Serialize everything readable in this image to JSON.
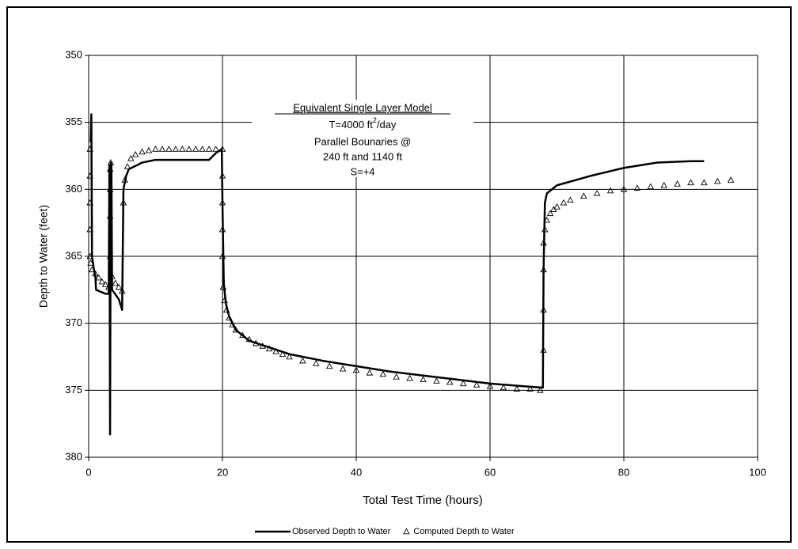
{
  "chart_data": {
    "type": "line",
    "annotation": {
      "title": "Equivalent Single Layer Model",
      "t_text": "T=4000 ft",
      "t_sup": "2",
      "t_unit": "/day",
      "line2": "Parallel Bounaries @",
      "line3": "240 ft and 1140 ft",
      "line4": "S=+4"
    },
    "x_label": "Total Test Time (hours)",
    "y_label": "Depth to Water (feet)",
    "xlim": [
      0,
      100
    ],
    "xticks": [
      0,
      20,
      40,
      60,
      80,
      100
    ],
    "ylim": [
      350,
      380
    ],
    "yticks": [
      350,
      355,
      360,
      365,
      370,
      375,
      380
    ],
    "y_inverted": true,
    "grid": true,
    "legend": "bottom",
    "series": [
      {
        "name": "Observed Depth to Water",
        "color": "#000000",
        "style": "line",
        "x": [
          0.3,
          0.4,
          0.5,
          0.8,
          1.0,
          1.1,
          2.5,
          3.0,
          3.1,
          3.2,
          3.3,
          3.4,
          3.5,
          4.5,
          5.0,
          5.2,
          5.6,
          6,
          8,
          10,
          15,
          18,
          19,
          19.9,
          20.0,
          20.2,
          20.5,
          21,
          22,
          24,
          27,
          30,
          35,
          40,
          45,
          50,
          55,
          60,
          65,
          67.9,
          68.0,
          68.2,
          68.5,
          70,
          75,
          80,
          85,
          90,
          92
        ],
        "values": [
          356.5,
          354.4,
          365,
          366,
          366.5,
          367.5,
          367.8,
          367.8,
          358.2,
          378.3,
          358,
          358.2,
          367.5,
          368.2,
          369,
          360,
          359,
          358.5,
          358.0,
          357.8,
          357.8,
          357.8,
          357.3,
          357.0,
          361,
          367,
          368.5,
          369.5,
          370.5,
          371.3,
          371.8,
          372.3,
          372.8,
          373.2,
          373.6,
          373.9,
          374.2,
          374.5,
          374.7,
          374.8,
          366,
          361,
          360.3,
          359.7,
          359.0,
          358.4,
          358.0,
          357.9,
          357.9
        ]
      },
      {
        "name": "Computed Depth to Water",
        "color": "#000000",
        "style": "markers",
        "x": [
          0.2,
          0.2,
          0.2,
          0.2,
          0.2,
          0.3,
          0.5,
          1,
          1.5,
          2,
          2.5,
          3,
          3.2,
          3.2,
          3.2,
          3.2,
          3.3,
          3.5,
          4,
          4.5,
          5,
          5.2,
          5.4,
          5.8,
          6.3,
          7,
          8,
          9,
          10,
          11,
          12,
          13,
          14,
          15,
          16,
          17,
          18,
          19,
          20,
          20,
          20,
          20,
          20,
          20.1,
          20.3,
          20.6,
          21,
          21.5,
          22,
          23,
          24,
          25,
          26,
          27,
          28,
          29,
          30,
          32,
          34,
          36,
          38,
          40,
          42,
          44,
          46,
          48,
          50,
          52,
          54,
          56,
          58,
          60,
          62,
          64,
          66,
          67.5,
          68,
          68,
          68,
          68,
          68.2,
          68.5,
          69,
          69.5,
          70,
          71,
          72,
          74,
          76,
          78,
          80,
          82,
          84,
          86,
          88,
          90,
          92,
          94,
          96
        ],
        "values": [
          357,
          359,
          361,
          363,
          365,
          365.5,
          366,
          366.3,
          366.6,
          366.9,
          367.1,
          367.3,
          365,
          362,
          360,
          358.5,
          358,
          366.5,
          367,
          367.3,
          367.6,
          361,
          359.3,
          358.3,
          357.7,
          357.4,
          357.2,
          357.1,
          357.0,
          357.0,
          357,
          357,
          357,
          357,
          357,
          357,
          357,
          357,
          357,
          359,
          361,
          363,
          365,
          367.3,
          368.3,
          369,
          369.6,
          370.1,
          370.5,
          370.9,
          371.2,
          371.5,
          371.7,
          371.9,
          372.1,
          372.3,
          372.5,
          372.8,
          373.0,
          373.2,
          373.4,
          373.5,
          373.7,
          373.8,
          374.0,
          374.1,
          374.2,
          374.3,
          374.4,
          374.5,
          374.6,
          374.7,
          374.8,
          374.9,
          374.9,
          375.0,
          372,
          369,
          366,
          364,
          363,
          362.3,
          361.8,
          361.5,
          361.3,
          361.0,
          360.8,
          360.5,
          360.3,
          360.1,
          360.0,
          359.9,
          359.8,
          359.7,
          359.6,
          359.5,
          359.5,
          359.4,
          359.3
        ]
      }
    ]
  }
}
